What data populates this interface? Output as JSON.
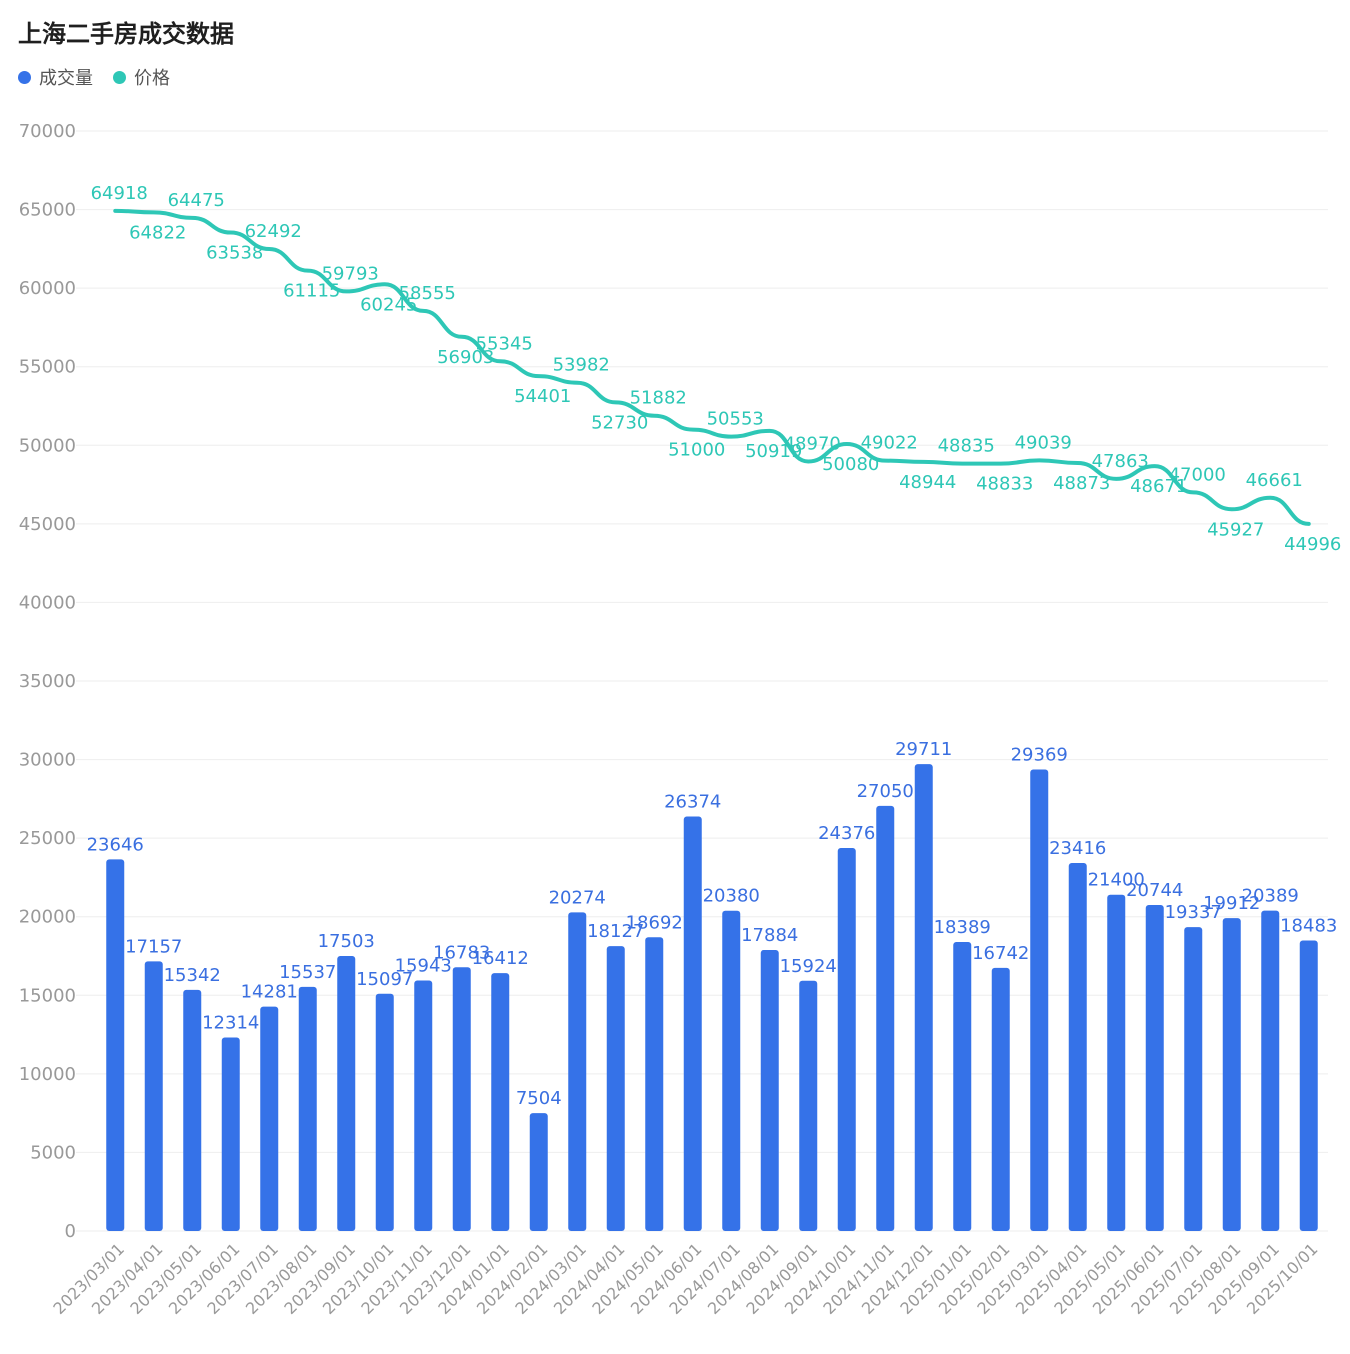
{
  "chart_data": {
    "type": "bar",
    "title": "上海二手房成交数据",
    "legend": [
      {
        "name": "成交量",
        "color": "#3572e8"
      },
      {
        "name": "价格",
        "color": "#2ec7b6"
      }
    ],
    "legend_position": "top-left",
    "grid": true,
    "ylim": [
      0,
      70000
    ],
    "yticks": [
      "0",
      "5000",
      "10000",
      "15000",
      "20000",
      "25000",
      "30000",
      "35000",
      "40000",
      "45000",
      "50000",
      "55000",
      "60000",
      "65000",
      "70000"
    ],
    "categories": [
      "2023/03/01",
      "2023/04/01",
      "2023/05/01",
      "2023/06/01",
      "2023/07/01",
      "2023/08/01",
      "2023/09/01",
      "2023/10/01",
      "2023/11/01",
      "2023/12/01",
      "2024/01/01",
      "2024/02/01",
      "2024/03/01",
      "2024/04/01",
      "2024/05/01",
      "2024/06/01",
      "2024/07/01",
      "2024/08/01",
      "2024/09/01",
      "2024/10/01",
      "2024/11/01",
      "2024/12/01",
      "2025/01/01",
      "2025/02/01",
      "2025/03/01",
      "2025/04/01",
      "2025/05/01",
      "2025/06/01",
      "2025/07/01",
      "2025/08/01",
      "2025/09/01",
      "2025/10/01"
    ],
    "series": [
      {
        "name": "成交量",
        "type": "bar",
        "color": "#3572e8",
        "values": [
          23646,
          17157,
          15342,
          12314,
          14281,
          15537,
          17503,
          15097,
          15943,
          16783,
          16412,
          7504,
          20274,
          18127,
          18692,
          26374,
          20380,
          17884,
          15924,
          24376,
          27050,
          29711,
          18389,
          16742,
          29369,
          23416,
          21400,
          20744,
          19337,
          19912,
          20389,
          18483
        ]
      },
      {
        "name": "价格",
        "type": "line",
        "color": "#2ec7b6",
        "values": [
          64918,
          64822,
          64475,
          63538,
          62492,
          61115,
          59793,
          60245,
          58555,
          56903,
          55345,
          54401,
          53982,
          52730,
          51882,
          51000,
          50553,
          50919,
          48970,
          50080,
          49022,
          48944,
          48835,
          48833,
          49039,
          48873,
          47863,
          48671,
          47000,
          45927,
          46661,
          44996
        ]
      }
    ]
  }
}
